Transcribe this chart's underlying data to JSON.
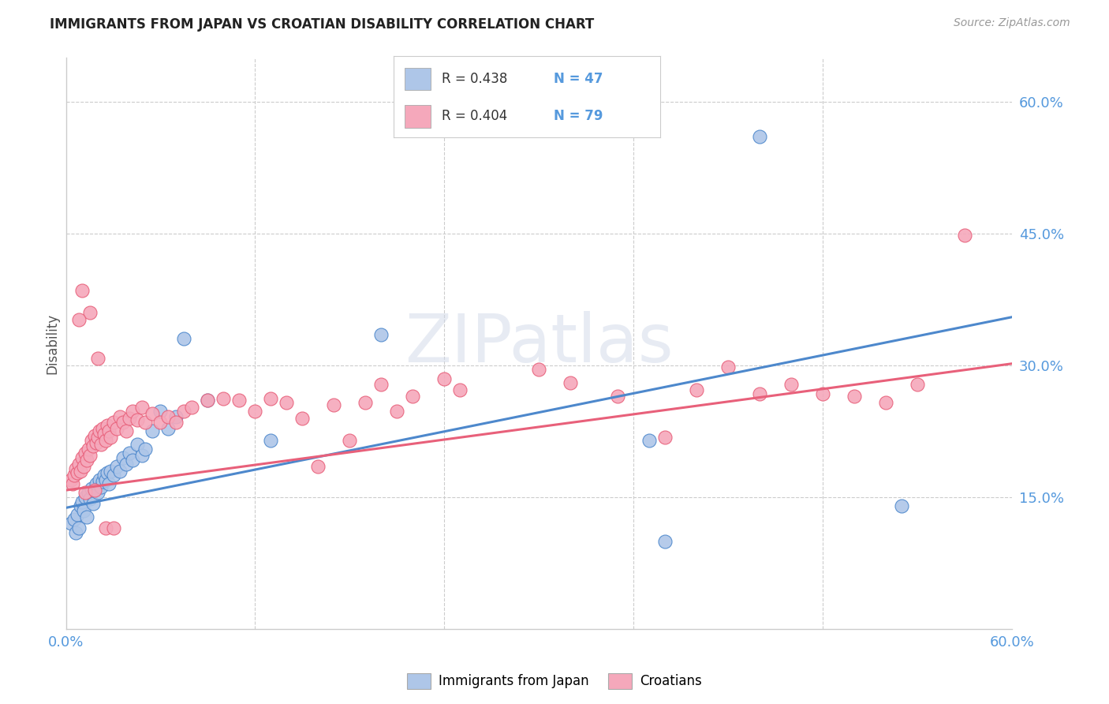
{
  "title": "IMMIGRANTS FROM JAPAN VS CROATIAN DISABILITY CORRELATION CHART",
  "source": "Source: ZipAtlas.com",
  "ylabel": "Disability",
  "xlim": [
    0.0,
    0.6
  ],
  "ylim": [
    0.0,
    0.65
  ],
  "xtick_pos": [
    0.0,
    0.12,
    0.24,
    0.36,
    0.48,
    0.6
  ],
  "xtick_labels": [
    "0.0%",
    "",
    "",
    "",
    "",
    "60.0%"
  ],
  "ytick_right": [
    0.6,
    0.45,
    0.3,
    0.15
  ],
  "ytick_right_labels": [
    "60.0%",
    "45.0%",
    "30.0%",
    "15.0%"
  ],
  "blue_color": "#aec6e8",
  "pink_color": "#f5a8bb",
  "line_blue_color": "#4d88cc",
  "line_pink_color": "#e8607a",
  "watermark": "ZIPatlas",
  "legend_r_blue": "0.438",
  "legend_n_blue": "47",
  "legend_r_pink": "0.404",
  "legend_n_pink": "79",
  "legend_label_blue": "Immigrants from Japan",
  "legend_label_pink": "Croatians",
  "blue_line_x0": 0.0,
  "blue_line_y0": 0.138,
  "blue_line_x1": 0.6,
  "blue_line_y1": 0.355,
  "pink_line_x0": 0.0,
  "pink_line_y0": 0.158,
  "pink_line_x1": 0.6,
  "pink_line_y1": 0.302,
  "blue_x": [
    0.003,
    0.005,
    0.006,
    0.007,
    0.008,
    0.009,
    0.01,
    0.011,
    0.012,
    0.013,
    0.014,
    0.015,
    0.016,
    0.017,
    0.018,
    0.019,
    0.02,
    0.021,
    0.022,
    0.023,
    0.024,
    0.025,
    0.026,
    0.027,
    0.028,
    0.03,
    0.032,
    0.034,
    0.036,
    0.038,
    0.04,
    0.042,
    0.045,
    0.048,
    0.05,
    0.055,
    0.06,
    0.065,
    0.07,
    0.075,
    0.09,
    0.13,
    0.2,
    0.37,
    0.44,
    0.53,
    0.38
  ],
  "blue_y": [
    0.12,
    0.125,
    0.11,
    0.13,
    0.115,
    0.14,
    0.145,
    0.135,
    0.15,
    0.128,
    0.155,
    0.148,
    0.16,
    0.143,
    0.158,
    0.165,
    0.155,
    0.17,
    0.162,
    0.168,
    0.175,
    0.17,
    0.178,
    0.165,
    0.18,
    0.175,
    0.185,
    0.18,
    0.195,
    0.188,
    0.2,
    0.192,
    0.21,
    0.198,
    0.205,
    0.225,
    0.248,
    0.228,
    0.242,
    0.33,
    0.26,
    0.215,
    0.335,
    0.215,
    0.56,
    0.14,
    0.1
  ],
  "pink_x": [
    0.003,
    0.004,
    0.005,
    0.006,
    0.007,
    0.008,
    0.009,
    0.01,
    0.011,
    0.012,
    0.013,
    0.014,
    0.015,
    0.016,
    0.017,
    0.018,
    0.019,
    0.02,
    0.021,
    0.022,
    0.023,
    0.024,
    0.025,
    0.026,
    0.027,
    0.028,
    0.03,
    0.032,
    0.034,
    0.036,
    0.038,
    0.04,
    0.042,
    0.045,
    0.048,
    0.05,
    0.055,
    0.06,
    0.065,
    0.07,
    0.075,
    0.08,
    0.09,
    0.1,
    0.11,
    0.12,
    0.13,
    0.14,
    0.15,
    0.16,
    0.17,
    0.18,
    0.19,
    0.2,
    0.21,
    0.22,
    0.24,
    0.25,
    0.3,
    0.32,
    0.35,
    0.38,
    0.4,
    0.42,
    0.44,
    0.46,
    0.48,
    0.5,
    0.52,
    0.54,
    0.57,
    0.01,
    0.015,
    0.02,
    0.012,
    0.008,
    0.018,
    0.025,
    0.03
  ],
  "pink_y": [
    0.17,
    0.165,
    0.175,
    0.182,
    0.178,
    0.188,
    0.18,
    0.195,
    0.185,
    0.2,
    0.192,
    0.205,
    0.198,
    0.215,
    0.208,
    0.22,
    0.212,
    0.218,
    0.225,
    0.21,
    0.228,
    0.222,
    0.215,
    0.232,
    0.225,
    0.218,
    0.235,
    0.228,
    0.242,
    0.235,
    0.225,
    0.24,
    0.248,
    0.238,
    0.252,
    0.235,
    0.245,
    0.235,
    0.242,
    0.235,
    0.248,
    0.252,
    0.26,
    0.262,
    0.26,
    0.248,
    0.262,
    0.258,
    0.24,
    0.185,
    0.255,
    0.215,
    0.258,
    0.278,
    0.248,
    0.265,
    0.285,
    0.272,
    0.295,
    0.28,
    0.265,
    0.218,
    0.272,
    0.298,
    0.268,
    0.278,
    0.268,
    0.265,
    0.258,
    0.278,
    0.448,
    0.385,
    0.36,
    0.308,
    0.155,
    0.352,
    0.158,
    0.115,
    0.115
  ]
}
